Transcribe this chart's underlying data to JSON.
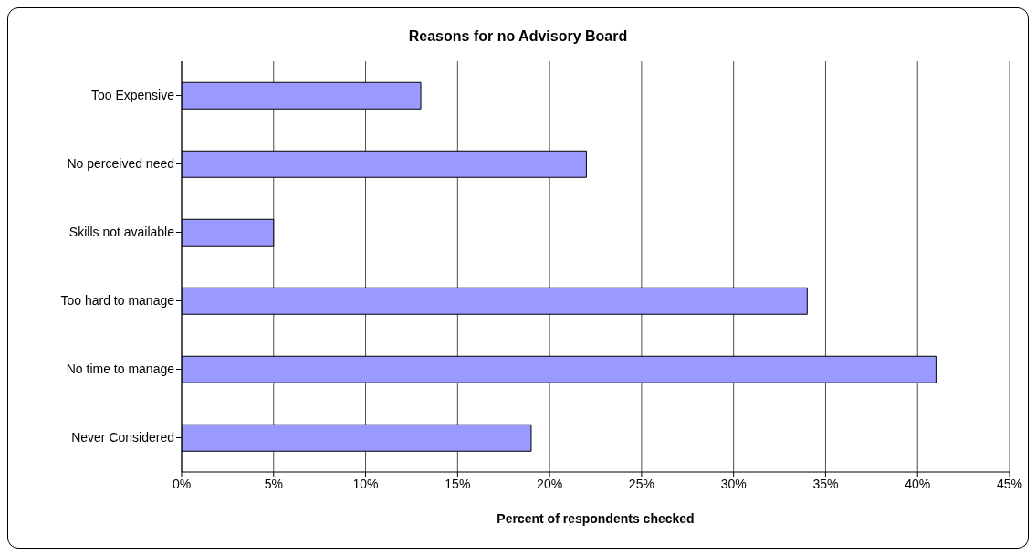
{
  "chart_data": {
    "type": "bar",
    "orientation": "horizontal",
    "title": "Reasons for no Advisory Board",
    "xlabel": "Percent of respondents checked",
    "categories": [
      "Too Expensive",
      "No perceived need",
      "Skills not available",
      "Too hard to manage",
      "No time to manage",
      "Never Considered"
    ],
    "values": [
      13,
      22,
      5,
      34,
      41,
      19
    ],
    "color": "#9999ff",
    "xlim": [
      0,
      45
    ],
    "xticks": [
      {
        "value": 0,
        "label": "0%"
      },
      {
        "value": 5,
        "label": "5%"
      },
      {
        "value": 10,
        "label": "10%"
      },
      {
        "value": 15,
        "label": "15%"
      },
      {
        "value": 20,
        "label": "20%"
      },
      {
        "value": 25,
        "label": "25%"
      },
      {
        "value": 30,
        "label": "30%"
      },
      {
        "value": 35,
        "label": "35%"
      },
      {
        "value": 40,
        "label": "40%"
      },
      {
        "value": 45,
        "label": "45%"
      }
    ],
    "grid": "x",
    "legend": false
  }
}
